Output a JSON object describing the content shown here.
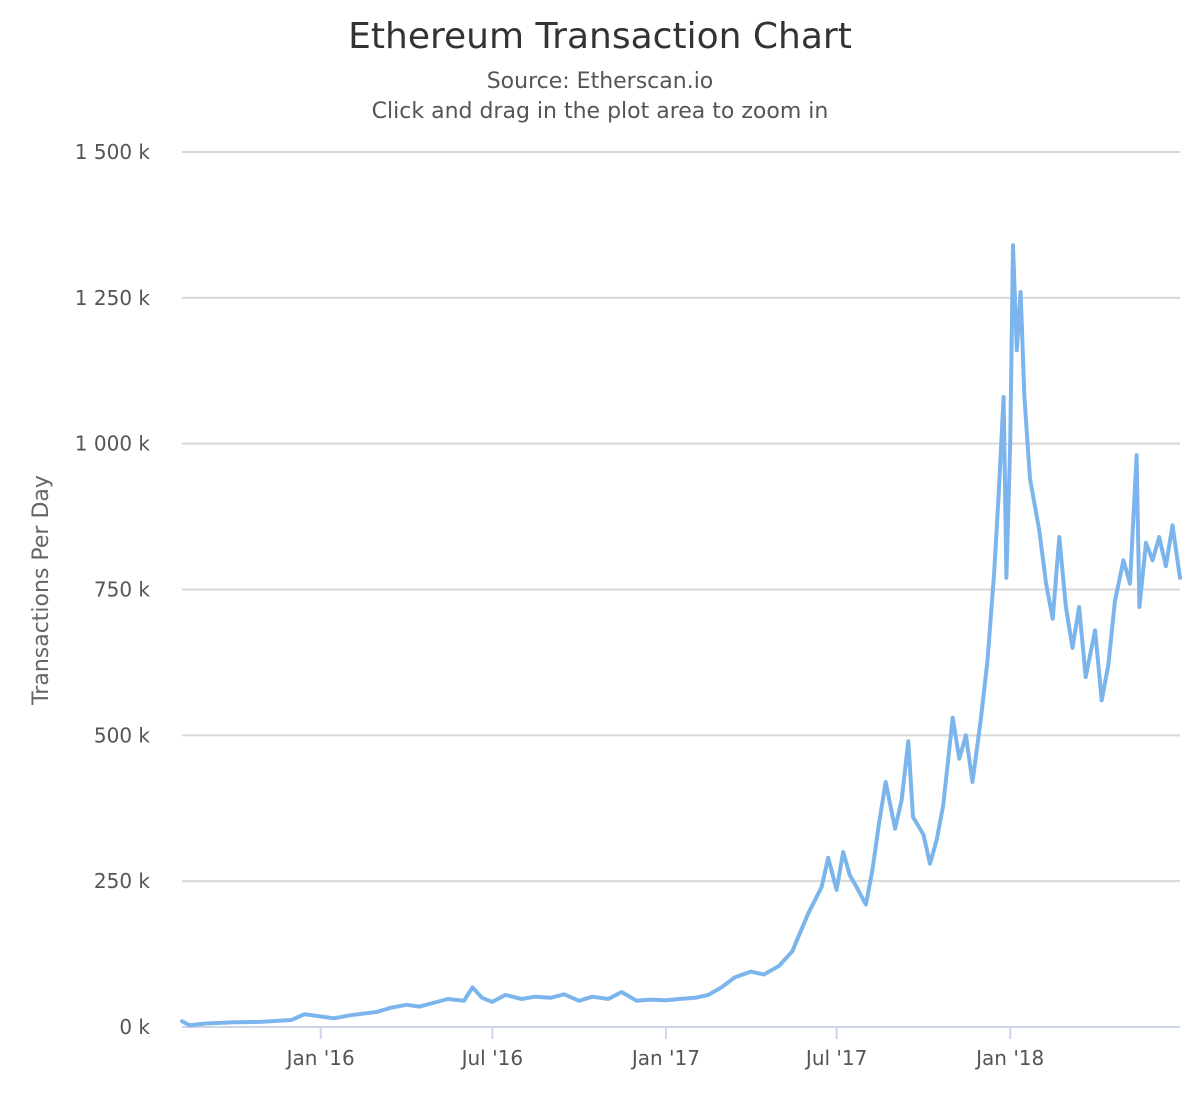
{
  "chart_data": {
    "type": "line",
    "title": "Ethereum Transaction Chart",
    "subtitle": "Source: Etherscan.io",
    "subtitle2": "Click and drag in the plot area to zoom in",
    "ylabel": "Transactions Per Day",
    "xlabel": "",
    "ylim": [
      0,
      1500000
    ],
    "xlim": [
      "2015-08-07",
      "2018-06-30"
    ],
    "grid": true,
    "legend": "none",
    "y_ticks": [
      {
        "value": 0,
        "label": "0 k"
      },
      {
        "value": 250000,
        "label": "250 k"
      },
      {
        "value": 500000,
        "label": "500 k"
      },
      {
        "value": 750000,
        "label": "750 k"
      },
      {
        "value": 1000000,
        "label": "1 000 k"
      },
      {
        "value": 1250000,
        "label": "1 250 k"
      },
      {
        "value": 1500000,
        "label": "1 500 k"
      }
    ],
    "x_ticks": [
      {
        "value": "2016-01-01",
        "label": "Jan '16"
      },
      {
        "value": "2016-07-01",
        "label": "Jul '16"
      },
      {
        "value": "2017-01-01",
        "label": "Jan '17"
      },
      {
        "value": "2017-07-01",
        "label": "Jul '17"
      },
      {
        "value": "2018-01-01",
        "label": "Jan '18"
      }
    ],
    "series": [
      {
        "color": "#7cb5ec",
        "points": [
          [
            "2015-08-07",
            10000
          ],
          [
            "2015-08-15",
            3000
          ],
          [
            "2015-09-01",
            6000
          ],
          [
            "2015-10-01",
            8000
          ],
          [
            "2015-11-01",
            9000
          ],
          [
            "2015-12-01",
            12000
          ],
          [
            "2015-12-15",
            22000
          ],
          [
            "2016-01-01",
            18000
          ],
          [
            "2016-01-15",
            15000
          ],
          [
            "2016-02-01",
            20000
          ],
          [
            "2016-03-01",
            26000
          ],
          [
            "2016-03-15",
            33000
          ],
          [
            "2016-04-01",
            38000
          ],
          [
            "2016-04-15",
            35000
          ],
          [
            "2016-05-01",
            42000
          ],
          [
            "2016-05-15",
            48000
          ],
          [
            "2016-06-01",
            45000
          ],
          [
            "2016-06-10",
            68000
          ],
          [
            "2016-06-20",
            50000
          ],
          [
            "2016-07-01",
            43000
          ],
          [
            "2016-07-15",
            55000
          ],
          [
            "2016-08-01",
            48000
          ],
          [
            "2016-08-15",
            52000
          ],
          [
            "2016-09-01",
            50000
          ],
          [
            "2016-09-15",
            56000
          ],
          [
            "2016-10-01",
            45000
          ],
          [
            "2016-10-15",
            52000
          ],
          [
            "2016-11-01",
            48000
          ],
          [
            "2016-11-15",
            60000
          ],
          [
            "2016-12-01",
            45000
          ],
          [
            "2016-12-15",
            47000
          ],
          [
            "2017-01-01",
            46000
          ],
          [
            "2017-01-15",
            48000
          ],
          [
            "2017-02-01",
            50000
          ],
          [
            "2017-02-15",
            55000
          ],
          [
            "2017-03-01",
            68000
          ],
          [
            "2017-03-15",
            85000
          ],
          [
            "2017-04-01",
            95000
          ],
          [
            "2017-04-15",
            90000
          ],
          [
            "2017-05-01",
            105000
          ],
          [
            "2017-05-15",
            130000
          ],
          [
            "2017-06-01",
            195000
          ],
          [
            "2017-06-15",
            240000
          ],
          [
            "2017-06-22",
            290000
          ],
          [
            "2017-07-01",
            235000
          ],
          [
            "2017-07-08",
            300000
          ],
          [
            "2017-07-15",
            260000
          ],
          [
            "2017-07-22",
            240000
          ],
          [
            "2017-08-01",
            210000
          ],
          [
            "2017-08-08",
            270000
          ],
          [
            "2017-08-15",
            350000
          ],
          [
            "2017-08-22",
            420000
          ],
          [
            "2017-09-01",
            340000
          ],
          [
            "2017-09-08",
            390000
          ],
          [
            "2017-09-15",
            490000
          ],
          [
            "2017-09-20",
            360000
          ],
          [
            "2017-10-01",
            330000
          ],
          [
            "2017-10-08",
            280000
          ],
          [
            "2017-10-15",
            320000
          ],
          [
            "2017-10-22",
            380000
          ],
          [
            "2017-11-01",
            530000
          ],
          [
            "2017-11-08",
            460000
          ],
          [
            "2017-11-15",
            500000
          ],
          [
            "2017-11-22",
            420000
          ],
          [
            "2017-12-01",
            530000
          ],
          [
            "2017-12-08",
            630000
          ],
          [
            "2017-12-15",
            780000
          ],
          [
            "2017-12-20",
            920000
          ],
          [
            "2017-12-25",
            1080000
          ],
          [
            "2017-12-28",
            770000
          ],
          [
            "2018-01-01",
            1000000
          ],
          [
            "2018-01-04",
            1340000
          ],
          [
            "2018-01-08",
            1160000
          ],
          [
            "2018-01-12",
            1260000
          ],
          [
            "2018-01-16",
            1080000
          ],
          [
            "2018-01-22",
            940000
          ],
          [
            "2018-02-01",
            850000
          ],
          [
            "2018-02-08",
            760000
          ],
          [
            "2018-02-15",
            700000
          ],
          [
            "2018-02-22",
            840000
          ],
          [
            "2018-03-01",
            720000
          ],
          [
            "2018-03-08",
            650000
          ],
          [
            "2018-03-15",
            720000
          ],
          [
            "2018-03-22",
            600000
          ],
          [
            "2018-04-01",
            680000
          ],
          [
            "2018-04-08",
            560000
          ],
          [
            "2018-04-15",
            620000
          ],
          [
            "2018-04-22",
            730000
          ],
          [
            "2018-05-01",
            800000
          ],
          [
            "2018-05-08",
            760000
          ],
          [
            "2018-05-15",
            980000
          ],
          [
            "2018-05-18",
            720000
          ],
          [
            "2018-05-25",
            830000
          ],
          [
            "2018-06-01",
            800000
          ],
          [
            "2018-06-08",
            840000
          ],
          [
            "2018-06-15",
            790000
          ],
          [
            "2018-06-22",
            860000
          ],
          [
            "2018-06-30",
            770000
          ]
        ]
      }
    ]
  }
}
